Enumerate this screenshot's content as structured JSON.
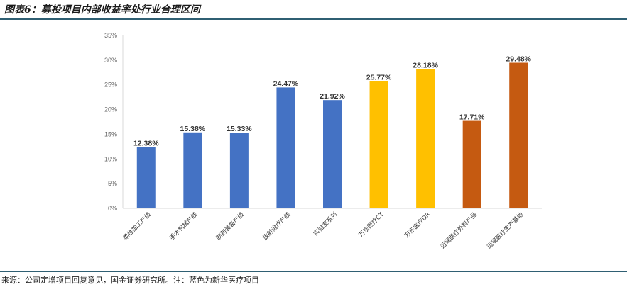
{
  "figure": {
    "title": "图表6：募投项目内部收益率处行业合理区间",
    "source": "来源：公司定增项目回复意见，国金证券研究所。注：蓝色为新华医疗项目"
  },
  "chart_data": {
    "type": "bar",
    "categories": [
      "柔性加工产线",
      "手术机械产线",
      "制药装备产线",
      "放射治疗产线",
      "实验室系列",
      "万东医疗CT",
      "万东医疗DR",
      "迈瑞医疗外科产品",
      "迈瑞医疗生产基地"
    ],
    "values": [
      12.38,
      15.38,
      15.33,
      24.47,
      21.92,
      25.77,
      28.18,
      17.71,
      29.48
    ],
    "data_labels": [
      "12.38%",
      "15.38%",
      "15.33%",
      "24.47%",
      "21.92%",
      "25.77%",
      "28.18%",
      "17.71%",
      "29.48%"
    ],
    "bar_colors": [
      "#4472c4",
      "#4472c4",
      "#4472c4",
      "#4472c4",
      "#4472c4",
      "#ffc000",
      "#ffc000",
      "#c55a11",
      "#c55a11"
    ],
    "ylim": [
      0,
      35
    ],
    "yticks": [
      0,
      5,
      10,
      15,
      20,
      25,
      30,
      35
    ],
    "ytick_labels": [
      "0%",
      "5%",
      "10%",
      "15%",
      "20%",
      "25%",
      "30%",
      "35%"
    ],
    "grid": false,
    "legend": "none"
  }
}
